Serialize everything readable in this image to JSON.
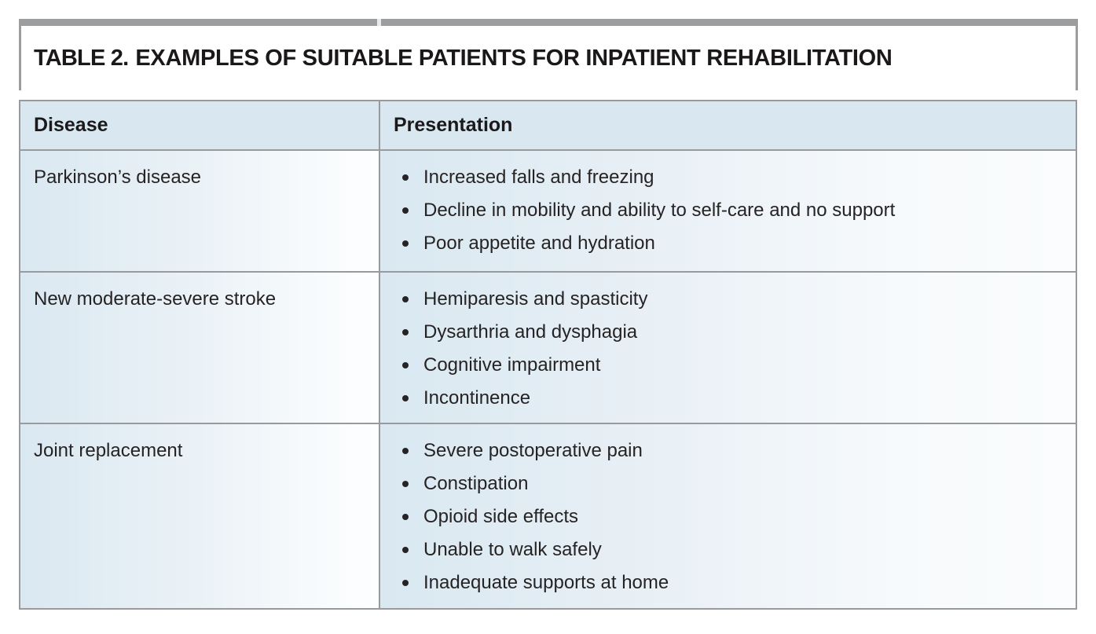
{
  "title": {
    "label": "TABLE 2.",
    "text": "EXAMPLES OF SUITABLE PATIENTS FOR INPATIENT REHABILITATION"
  },
  "table": {
    "columns": [
      "Disease",
      "Presentation"
    ],
    "rows": [
      {
        "disease": "Parkinson’s disease",
        "presentations": [
          "Increased falls and freezing",
          "Decline in mobility and ability to self-care and no support",
          "Poor appetite and hydration"
        ]
      },
      {
        "disease": "New moderate-severe stroke",
        "presentations": [
          "Hemiparesis and spasticity",
          "Dysarthria and dysphagia",
          "Cognitive impairment",
          "Incontinence"
        ]
      },
      {
        "disease": "Joint replacement",
        "presentations": [
          "Severe postoperative pain",
          "Constipation",
          "Opioid side effects",
          "Unable to walk safely",
          "Inadequate supports at home"
        ]
      }
    ]
  },
  "icons": {
    "bullet": "filled-dot"
  },
  "colors": {
    "header_bg": "#d8e7f0",
    "cell_gradient_start": "#d9e8f1",
    "cell_gradient_end": "#fbfdfe",
    "border_gray": "#989a9d",
    "top_rule_gray": "#9b9d9f",
    "body_text": "#262324",
    "title_text": "#1b1819"
  }
}
